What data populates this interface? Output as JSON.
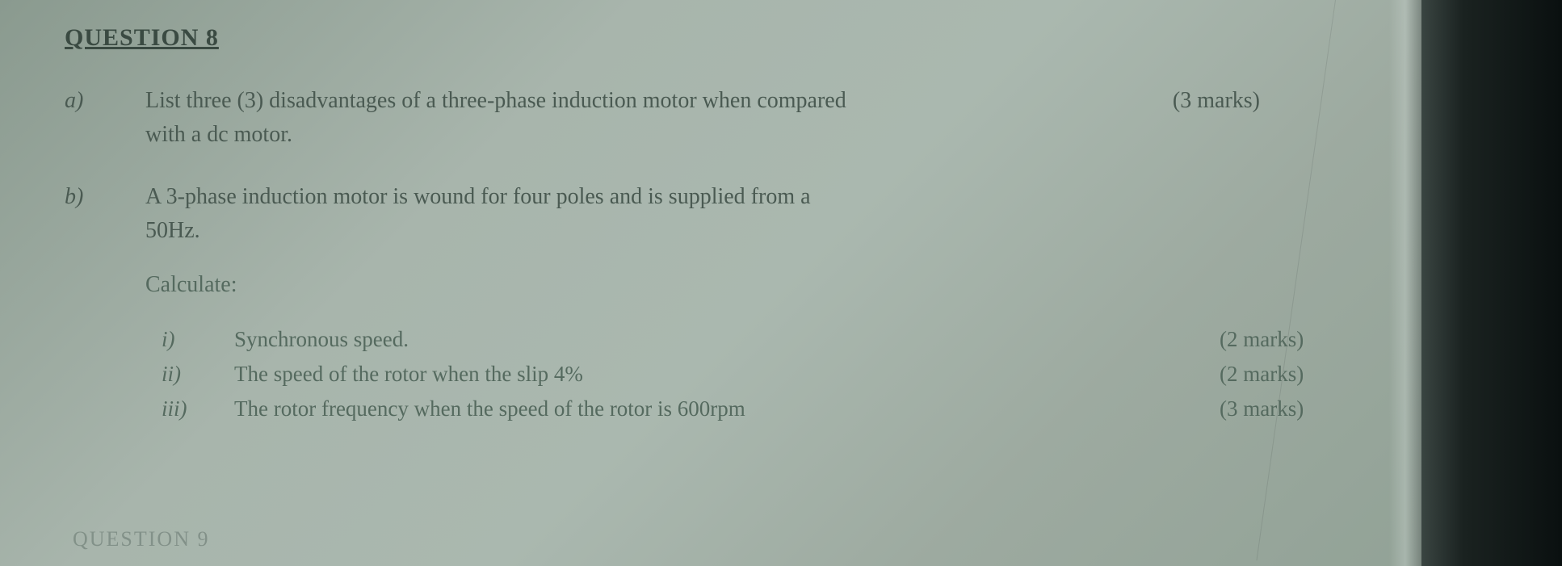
{
  "header": {
    "title": "QUESTION 8"
  },
  "part_a": {
    "label": "a)",
    "line1": "List three (3) disadvantages of a three-phase induction  motor when compared",
    "line2": "with a dc motor.",
    "marks": "(3 marks)"
  },
  "part_b": {
    "label": "b)",
    "line1": "A 3-phase induction motor is wound for four poles and is supplied from a",
    "line2": "50Hz.",
    "calculate": "Calculate:",
    "subparts": [
      {
        "label": "i)",
        "text": "Synchronous speed.",
        "marks": "(2 marks)"
      },
      {
        "label": "ii)",
        "text": "The speed of the rotor when the slip 4%",
        "marks": "(2 marks)"
      },
      {
        "label": "iii)",
        "text": "The rotor frequency when the speed of the rotor is 600rpm",
        "marks": "(3 marks)"
      }
    ]
  },
  "footer": {
    "text": "QUESTION 9"
  },
  "styling": {
    "background_gradient_start": "#8a9a8f",
    "background_gradient_end": "#8fa094",
    "text_color": "#4a5a52",
    "header_color": "#3a4a42",
    "subpart_color": "#556a5f",
    "dark_edge_color": "#0a1010",
    "font_family": "Georgia, Times New Roman, serif",
    "header_fontsize": 30,
    "body_fontsize": 28,
    "subpart_fontsize": 27
  }
}
